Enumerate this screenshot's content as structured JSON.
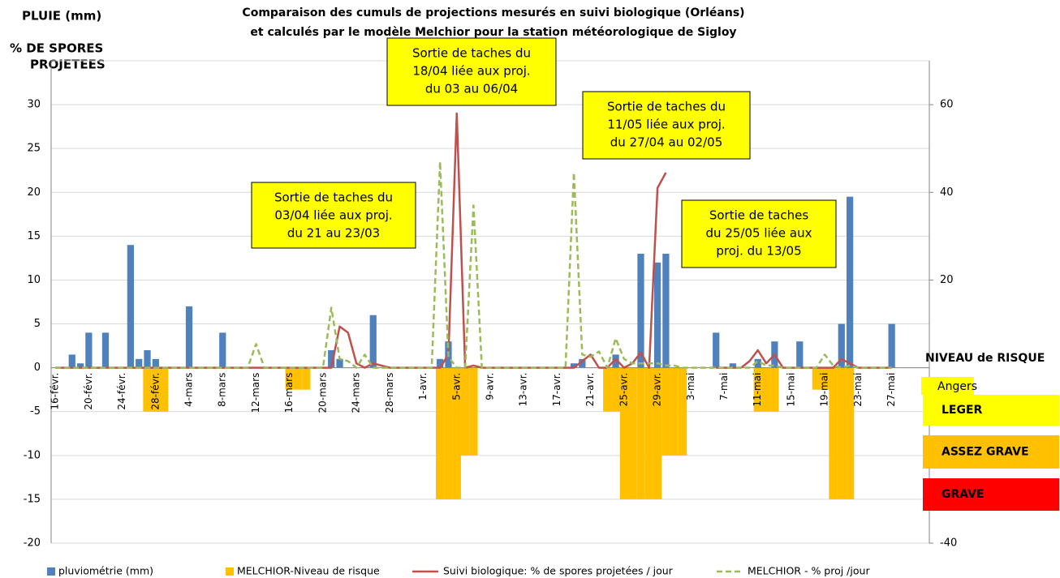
{
  "chart_data": {
    "type": "combo",
    "title": [
      "Comparaison des cumuls de projections mesurés en suivi biologique (Orléans)",
      "et calculés par le modèle  Melchior pour la station météorologique de Sigloy"
    ],
    "ylabel": [
      "PLUIE (mm)",
      "% DE SPORES",
      "PROJETEES"
    ],
    "categories": [
      "16-févr.",
      null,
      null,
      null,
      "20-févr.",
      null,
      null,
      null,
      "24-févr.",
      null,
      null,
      null,
      "28-févr.",
      null,
      null,
      null,
      "4-mars",
      null,
      null,
      null,
      "8-mars",
      null,
      null,
      null,
      "12-mars",
      null,
      null,
      null,
      "16-mars",
      null,
      null,
      null,
      "20-mars",
      null,
      null,
      null,
      "24-mars",
      null,
      null,
      null,
      "28-mars",
      null,
      null,
      null,
      "1-avr.",
      null,
      null,
      null,
      "5-avr.",
      null,
      null,
      null,
      "9-avr.",
      null,
      null,
      null,
      "13-avr.",
      null,
      null,
      null,
      "17-avr.",
      null,
      null,
      null,
      "21-avr.",
      null,
      null,
      null,
      "25-avr.",
      null,
      null,
      null,
      "29-avr.",
      null,
      null,
      null,
      "3-mai",
      null,
      null,
      null,
      "7-mai",
      null,
      null,
      null,
      "11-mai",
      null,
      null,
      null,
      "15-mai",
      null,
      null,
      null,
      "19-mai",
      null,
      null,
      null,
      "23-mai",
      null,
      null,
      null,
      "27-mai",
      null,
      null,
      null,
      null
    ],
    "ylim": [
      -20,
      35
    ],
    "yticks": [
      -20,
      -15,
      -10,
      -5,
      0,
      5,
      10,
      15,
      20,
      25,
      30
    ],
    "y2lim": [
      -40,
      70
    ],
    "y2ticks": [
      -40,
      20,
      40,
      60
    ],
    "grid": true,
    "series": [
      {
        "name": "pluviométrie (mm)",
        "kind": "bar",
        "color": "#4f81bd",
        "values": [
          0,
          0,
          1.5,
          0.5,
          4,
          0,
          4,
          0,
          0,
          14,
          1,
          2,
          1,
          0,
          0,
          0,
          7,
          0,
          0,
          0,
          4,
          0,
          0,
          0,
          0,
          0,
          0,
          0,
          0,
          0,
          0,
          0,
          0,
          2,
          1,
          0,
          0,
          0,
          6,
          0,
          0,
          0,
          0,
          0,
          0,
          0,
          1,
          3,
          0,
          0,
          0,
          0,
          0,
          0,
          0,
          0,
          0,
          0,
          0,
          0,
          0,
          0,
          0.5,
          1,
          0,
          0,
          0,
          1.5,
          0,
          0,
          13,
          0,
          12,
          13,
          0,
          0,
          0,
          0,
          0,
          4,
          0,
          0.5,
          0,
          0,
          1,
          0,
          3,
          0,
          0,
          3,
          0,
          0,
          0,
          0,
          5,
          19.5,
          0,
          0,
          0,
          0,
          5,
          0,
          0,
          0,
          0
        ]
      },
      {
        "name": "MELCHIOR-Niveau de risque",
        "kind": "bar",
        "color": "#ffc000",
        "values": [
          0,
          0,
          0,
          0,
          0,
          0,
          0,
          0,
          0,
          0,
          0,
          -5,
          -5,
          -5,
          0,
          0,
          0,
          0,
          0,
          0,
          0,
          0,
          0,
          0,
          0,
          0,
          0,
          0,
          -2.5,
          -2.5,
          -2.5,
          0,
          0,
          0,
          0,
          0,
          0,
          0,
          0,
          0,
          0,
          0,
          0,
          0,
          0,
          0,
          -15,
          -15,
          -15,
          -10,
          -10,
          0,
          0,
          0,
          0,
          0,
          0,
          0,
          0,
          0,
          0,
          0,
          0,
          0,
          0,
          0,
          -5,
          -5,
          -15,
          -15,
          -15,
          -15,
          -15,
          -10,
          -10,
          -10,
          0,
          0,
          0,
          0,
          0,
          0,
          0,
          0,
          -5,
          -5,
          -5,
          0,
          0,
          0,
          0,
          -2.5,
          -2.5,
          -15,
          -15,
          -15,
          0,
          0,
          0,
          0,
          0,
          0,
          0,
          0,
          0
        ]
      },
      {
        "name": "Suivi biologique: % de spores projetées / jour",
        "kind": "line",
        "axis": "y2",
        "color": "#c0504d",
        "dashed": false,
        "values": [
          0,
          0,
          0,
          0,
          0,
          0,
          0,
          0,
          0,
          0,
          0,
          0,
          0,
          0,
          0,
          0,
          0,
          0,
          0,
          0,
          0,
          0,
          0,
          0,
          0,
          0,
          0,
          0,
          0,
          0,
          0,
          0,
          0,
          0,
          9.4,
          8,
          1,
          0,
          1,
          0.5,
          0,
          0,
          0,
          0,
          0,
          0,
          0,
          3,
          58,
          0,
          0.5,
          0,
          0,
          0,
          0,
          0,
          0,
          0,
          0,
          0,
          0,
          0,
          0,
          1.5,
          3,
          0,
          0,
          2,
          0,
          1,
          3.5,
          0,
          41,
          44.5,
          null,
          null,
          null,
          null,
          null,
          0,
          0,
          0,
          0,
          1.5,
          4,
          1,
          3,
          0,
          0,
          0,
          0,
          0,
          0,
          0,
          2,
          1,
          0,
          0,
          0,
          0,
          0,
          null,
          null,
          null,
          null
        ]
      },
      {
        "name": "MELCHIOR - % proj /jour",
        "kind": "line",
        "axis": "y2",
        "color": "#9bbb59",
        "dashed": true,
        "values": [
          0,
          0,
          0,
          0,
          0,
          0,
          0,
          0,
          0,
          0,
          0,
          0,
          0,
          0,
          0,
          0,
          0,
          0,
          0,
          0,
          0,
          0,
          0,
          0,
          5.4,
          0,
          0,
          0,
          0,
          0,
          0,
          0,
          0,
          13.7,
          2,
          1.5,
          0,
          3,
          0,
          0,
          0,
          0,
          0,
          0,
          0,
          0,
          47,
          2.5,
          0,
          0,
          37,
          0,
          0,
          0,
          0,
          0,
          0,
          0,
          0,
          0,
          0,
          0,
          44.5,
          3,
          2.5,
          3.7,
          0,
          6.7,
          2,
          1,
          1,
          1,
          1,
          0.5,
          0.5,
          0,
          0,
          0,
          0,
          0,
          0,
          0,
          0,
          0,
          1.5,
          0.5,
          0.5,
          0,
          0,
          0,
          0,
          0,
          3,
          0.5,
          0,
          0.5,
          0,
          0,
          0,
          0,
          0,
          null,
          null,
          null,
          null
        ]
      }
    ],
    "annotations": [
      [
        "Sortie de taches du",
        "18/04 liée aux proj.",
        "du 03 au 06/04"
      ],
      [
        "Sortie de taches du",
        "11/05 liée aux proj.",
        "du 27/04 au 02/05"
      ],
      [
        "Sortie de taches du",
        "03/04 liée aux proj.",
        "du 21 au 23/03"
      ],
      [
        "Sortie de taches",
        "du 25/05 liée aux",
        "proj. du 13/05"
      ]
    ],
    "annotation_color": "#ffff00",
    "risk_legend": {
      "title": "NIVEAU de RISQUE",
      "location": "Angers",
      "levels": [
        "LEGER",
        "ASSEZ GRAVE",
        "GRAVE"
      ],
      "colors": [
        "#ffff00",
        "#ffc000",
        "#ff0000"
      ]
    }
  }
}
